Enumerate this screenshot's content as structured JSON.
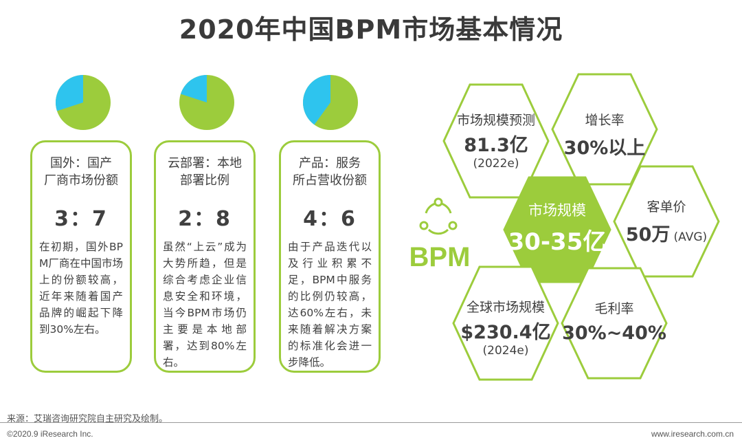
{
  "page": {
    "title": "2020年中国BPM市场基本情况"
  },
  "colors": {
    "green": "#9ccc3c",
    "blue": "#2ec4ee",
    "text": "#404040"
  },
  "cards": [
    {
      "head": "国外：国产\n厂商市场份额",
      "ratio": "3：7",
      "pie_share_blue": 0.3,
      "body": "在初期，国外BPM厂商在中国市场上的份额较高，近年来随着国产品牌的崛起下降到30%左右。"
    },
    {
      "head": "云部署：本地\n部署比例",
      "ratio": "2：8",
      "pie_share_blue": 0.2,
      "body": "虽然“上云”成为大势所趋，但是综合考虑企业信息安全和环境，当今BPM市场仍主要是本地部署，达到80%左右。"
    },
    {
      "head": "产品：服务\n所占营收份额",
      "ratio": "4：6",
      "pie_share_blue": 0.4,
      "body": "由于产品迭代以及行业积累不足，BPM中服务的比例仍较高，达60%左右，未来随着解决方案的标准化会进一步降低。"
    }
  ],
  "hexagons": {
    "market_forecast": {
      "label": "市场规模预测",
      "value": "81.3亿",
      "sub": "(2022e)"
    },
    "growth": {
      "label": "增长率",
      "value": "30%以上"
    },
    "center": {
      "label": "市场规模",
      "value": "30-35亿"
    },
    "unit_price": {
      "label": "客单价",
      "value": "50万",
      "sub": "(AVG)"
    },
    "global": {
      "label": "全球市场规模",
      "value": "$230.4亿",
      "sub": "(2024e)"
    },
    "margin": {
      "label": "毛利率",
      "value": "30%~40%"
    }
  },
  "bpm_logo": {
    "text": "BPM",
    "icon": "share-cycle-icon"
  },
  "footer": {
    "source": "来源：艾瑞咨询研究院自主研究及绘制。",
    "copyright": "©2020.9 iResearch Inc.",
    "website": "www.iresearch.com.cn"
  }
}
